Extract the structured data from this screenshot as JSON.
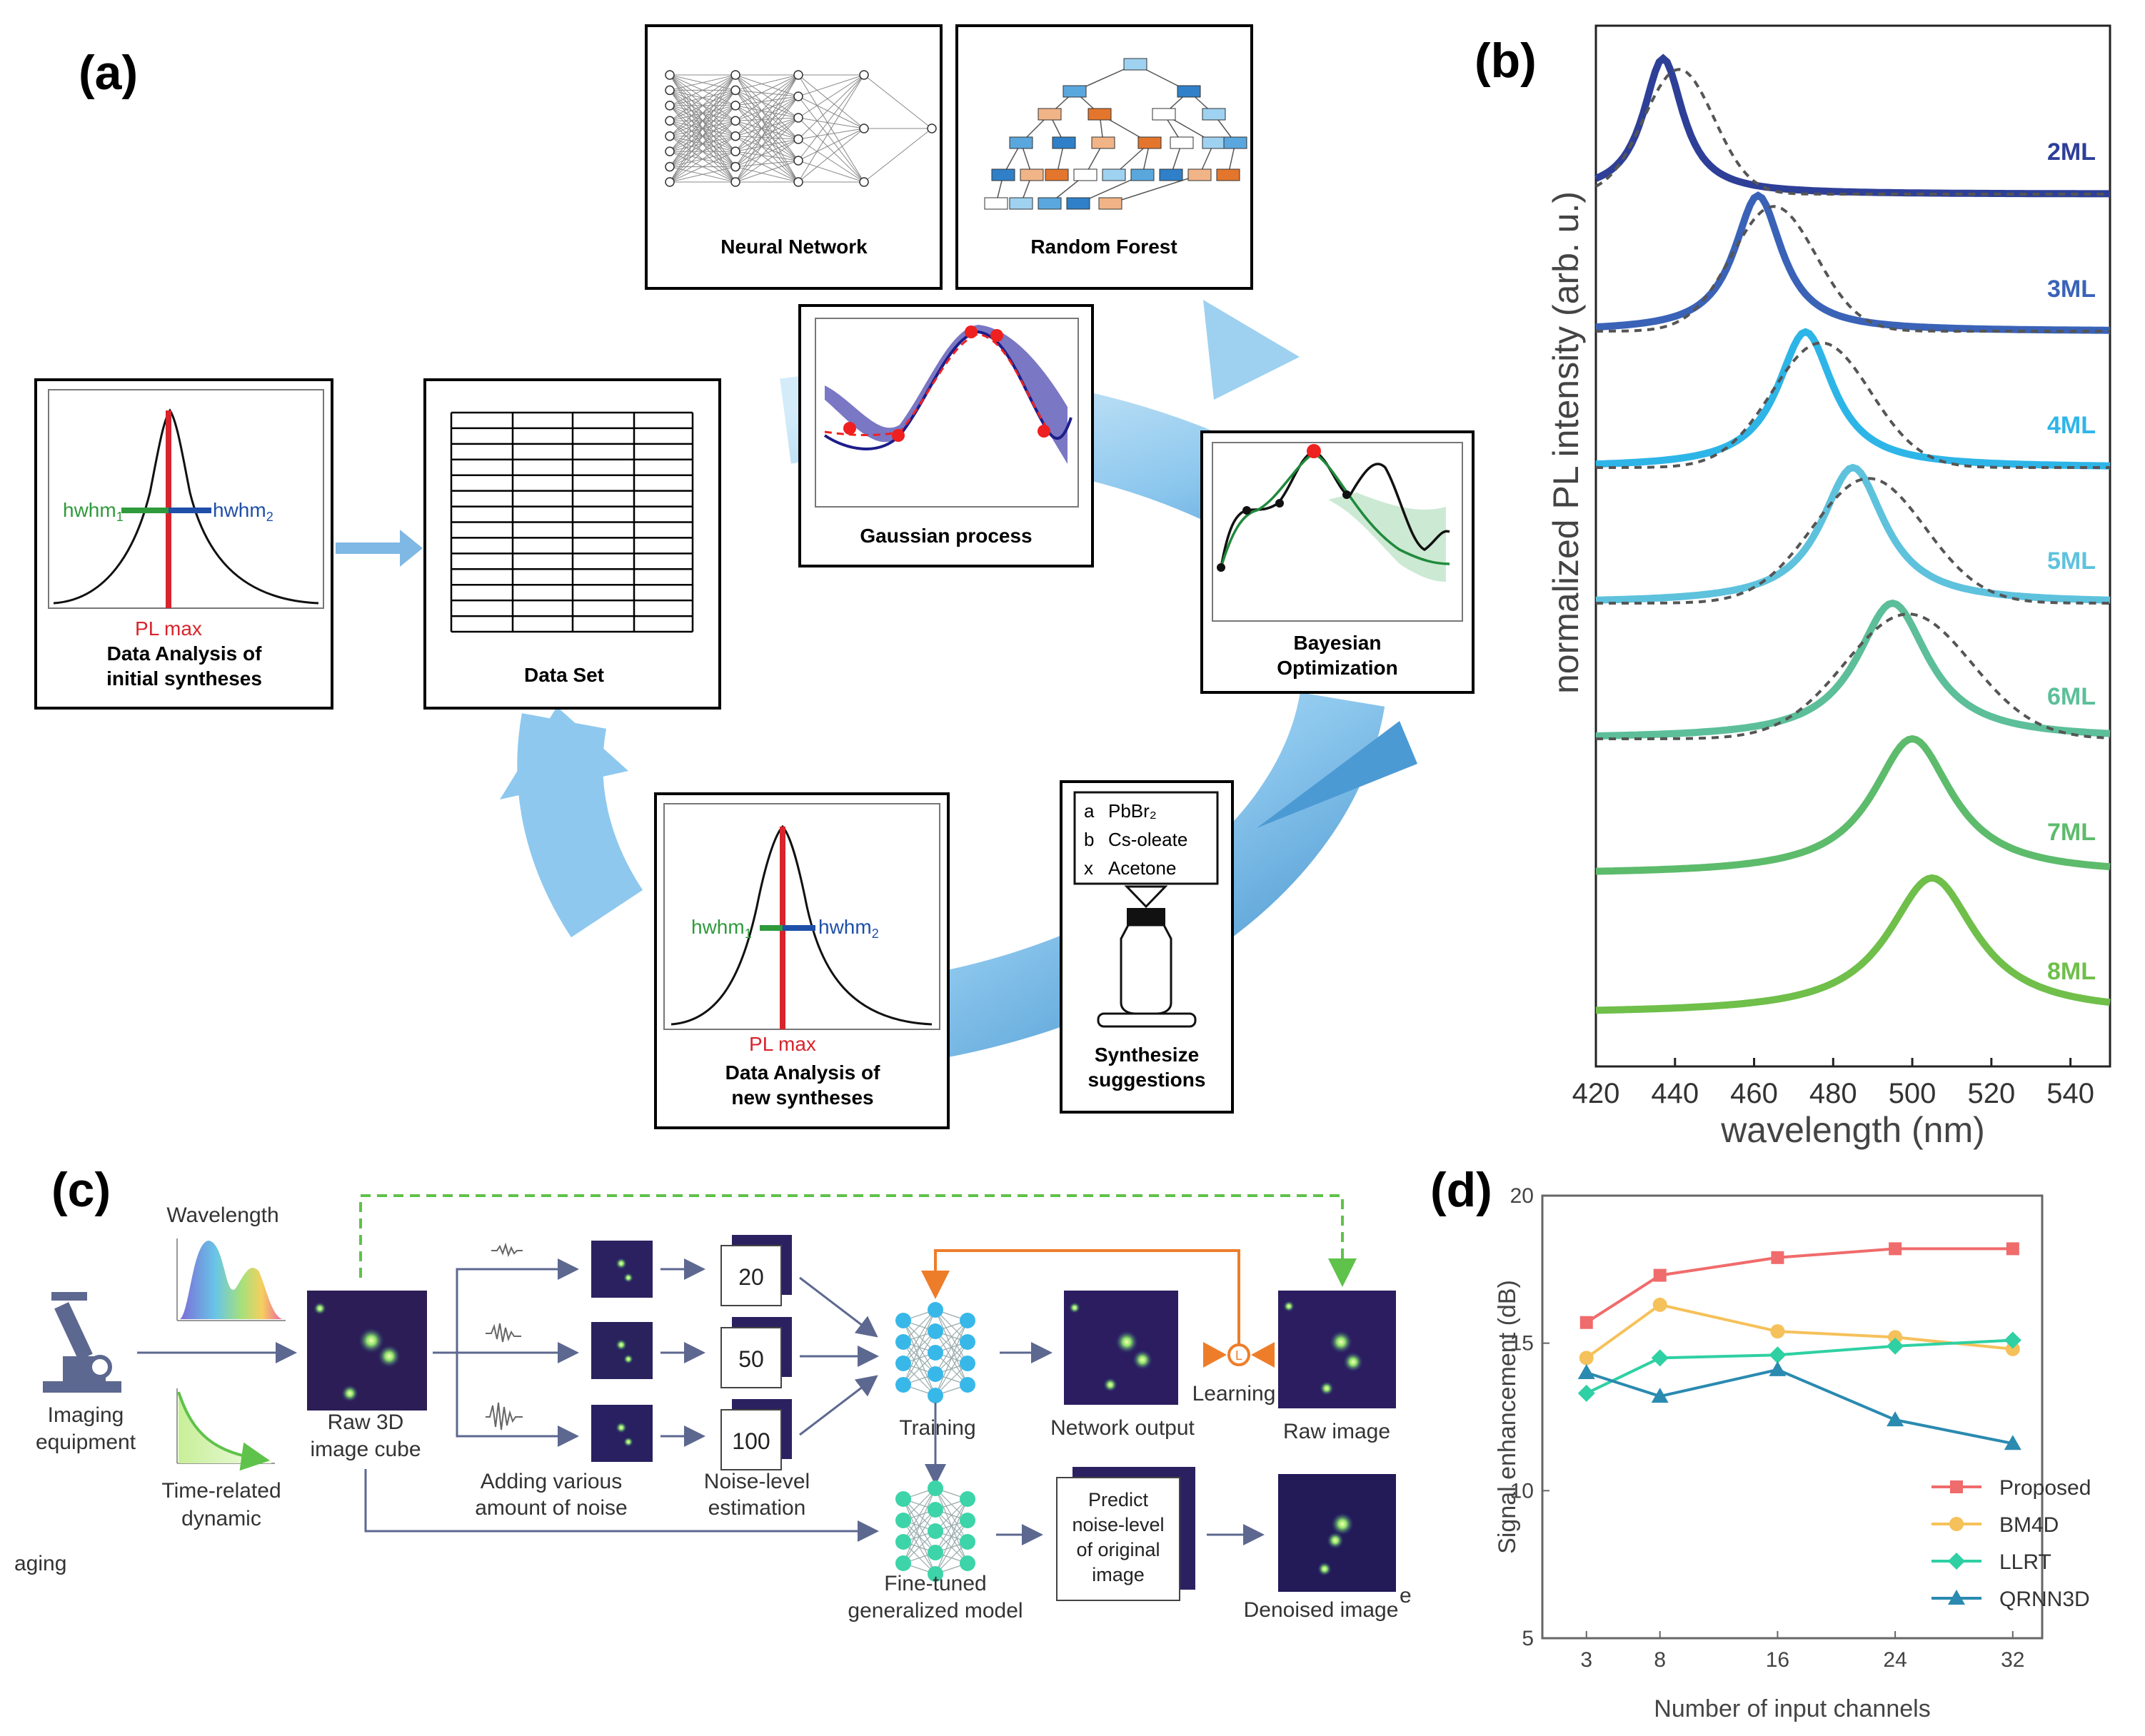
{
  "panel_labels": {
    "a": "(a)",
    "b": "(b)",
    "c": "(c)",
    "d": "(d)"
  },
  "panel_a": {
    "neural_network": "Neural Network",
    "random_forest": "Random Forest",
    "gaussian_process": "Gaussian process",
    "data_set": "Data Set",
    "bayesian_line1": "Bayesian",
    "bayesian_line2": "Optimization",
    "init_line1": "Data Analysis of",
    "init_line2": "initial syntheses",
    "new_line1": "Data Analysis of",
    "new_line2": "new syntheses",
    "hwhm1": "hwhm",
    "hwhm1_sub": "1",
    "hwhm2": "hwhm",
    "hwhm2_sub": "2",
    "pl_max": "PL max",
    "synth_line1": "Synthesize",
    "synth_line2": "suggestions",
    "reagents": [
      {
        "key": "a",
        "name": "PbBr₂"
      },
      {
        "key": "b",
        "name": "Cs-oleate"
      },
      {
        "key": "x",
        "name": "Acetone"
      }
    ]
  },
  "chart_data": [
    {
      "type": "line",
      "panel": "b",
      "title": "",
      "xlabel": "wavelength (nm)",
      "ylabel": "normalized PL intensity (arb. u.)",
      "xlim": [
        420,
        550
      ],
      "xticks": [
        420,
        440,
        460,
        480,
        500,
        520,
        540
      ],
      "series": [
        {
          "name": "2ML",
          "peak_nm": 437,
          "color": "#2e3f98"
        },
        {
          "name": "3ML",
          "peak_nm": 461,
          "color": "#3a63b8"
        },
        {
          "name": "4ML",
          "peak_nm": 473,
          "color": "#2eb5e8"
        },
        {
          "name": "5ML",
          "peak_nm": 485,
          "color": "#5ec2dd"
        },
        {
          "name": "6ML",
          "peak_nm": 495,
          "color": "#5cbf9a"
        },
        {
          "name": "7ML",
          "peak_nm": 500,
          "color": "#5dbb6c"
        },
        {
          "name": "8ML",
          "peak_nm": 505,
          "color": "#6fbf4a"
        }
      ]
    },
    {
      "type": "line",
      "panel": "d",
      "title": "",
      "xlabel": "Number of input channels",
      "ylabel": "Signal enhancement (dB)",
      "categories": [
        "3",
        "8",
        "16",
        "24",
        "32"
      ],
      "ylim": [
        5,
        20
      ],
      "yticks": [
        5,
        10,
        15,
        20
      ],
      "legend_position": "bottom-right",
      "series": [
        {
          "name": "Proposed",
          "marker": "square",
          "color": "#f06b6b",
          "values": [
            15.7,
            17.3,
            17.9,
            18.2,
            18.2
          ]
        },
        {
          "name": "BM4D",
          "marker": "circle",
          "color": "#f5c15a",
          "values": [
            14.5,
            16.3,
            15.4,
            15.2,
            14.8
          ]
        },
        {
          "name": "LLRT",
          "marker": "diamond",
          "color": "#2fd0a3",
          "values": [
            13.3,
            14.5,
            14.6,
            14.9,
            15.1
          ]
        },
        {
          "name": "QRNN3D",
          "marker": "triangle",
          "color": "#2a8ab0",
          "values": [
            14.0,
            13.2,
            14.1,
            12.4,
            11.6
          ]
        }
      ]
    }
  ],
  "panel_c": {
    "wavelength": "Wavelength",
    "imaging_line1": "Imaging",
    "imaging_line2": "equipment",
    "time_line1": "Time-related",
    "time_line2": "dynamic",
    "raw_line1": "Raw 3D",
    "raw_line2": "image cube",
    "noise_line1": "Adding various",
    "noise_line2": "amount of noise",
    "est_line1": "Noise-level",
    "est_line2": "estimation",
    "levels": [
      "20",
      "50",
      "100"
    ],
    "training": "Training",
    "network_output": "Network output",
    "learning": "Learning",
    "raw_image": "Raw image",
    "fine_line1": "Fine-tuned",
    "fine_line2": "generalized model",
    "predict_line1": "Predict",
    "predict_line2": "noise-level",
    "predict_line3": "of original",
    "predict_line4": "image",
    "denoised": "Denoised image",
    "cut_left": "aging",
    "cut_right": "e"
  }
}
